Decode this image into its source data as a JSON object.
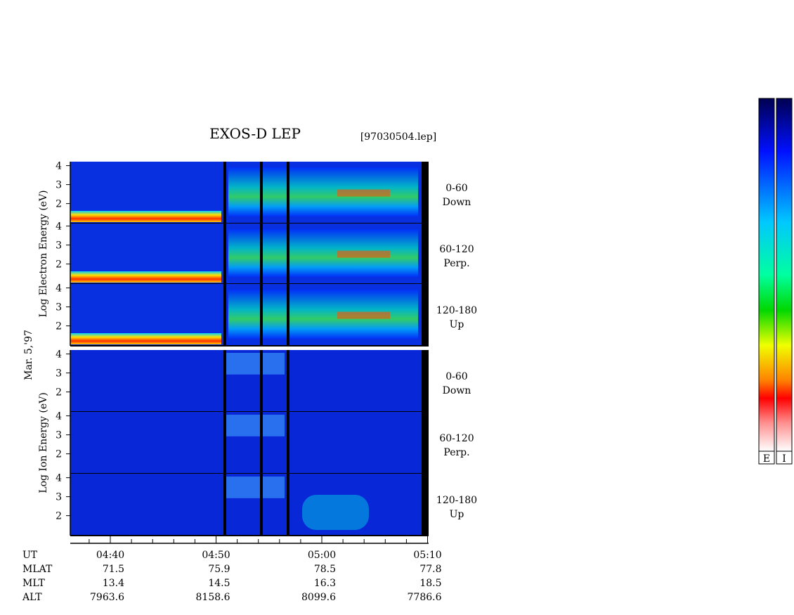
{
  "header": {
    "title": "EXOS-D LEP",
    "file": "[97030504.lep]"
  },
  "date": "Mar. 5,'97",
  "electron": {
    "axis_label": "Log   Electron   Energy (eV)",
    "yticks": [
      4,
      3,
      2
    ],
    "panels": [
      {
        "angle": "0-60",
        "direction": "Down"
      },
      {
        "angle": "60-120",
        "direction": "Perp."
      },
      {
        "angle": "120-180",
        "direction": "Up"
      }
    ]
  },
  "ion": {
    "axis_label": "Log   Ion   Energy (eV)",
    "yticks": [
      4,
      3,
      2
    ],
    "panels": [
      {
        "angle": "0-60",
        "direction": "Down"
      },
      {
        "angle": "60-120",
        "direction": "Perp."
      },
      {
        "angle": "120-180",
        "direction": "Up"
      }
    ]
  },
  "time_axis": {
    "ticks": [
      "04:40",
      "04:50",
      "05:00",
      "05:10"
    ]
  },
  "ephemeris": {
    "rows": [
      {
        "name": "UT"
      },
      {
        "name": "MLAT",
        "values": [
          71.5,
          75.9,
          78.5,
          77.8
        ]
      },
      {
        "name": "MLT",
        "values": [
          13.4,
          14.5,
          16.3,
          18.5
        ]
      },
      {
        "name": "ALT",
        "values": [
          7963.6,
          8158.6,
          8099.6,
          7786.6
        ]
      }
    ]
  },
  "colorbars": [
    "E",
    "I"
  ]
}
